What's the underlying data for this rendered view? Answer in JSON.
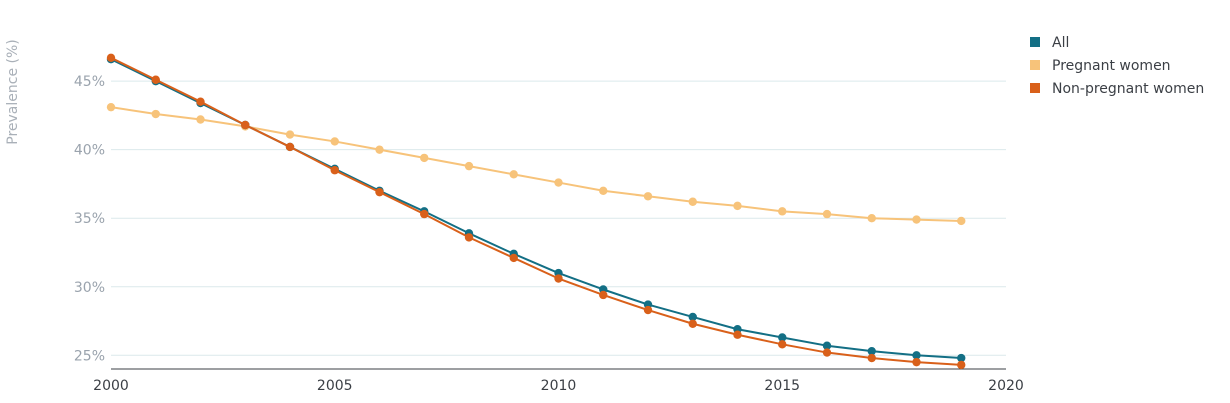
{
  "chart_data": {
    "type": "line",
    "title": "",
    "xlabel": "",
    "ylabel": "Prevalence (%)",
    "x": [
      2000,
      2001,
      2002,
      2003,
      2004,
      2005,
      2006,
      2007,
      2008,
      2009,
      2010,
      2011,
      2012,
      2013,
      2014,
      2015,
      2016,
      2017,
      2018,
      2019
    ],
    "xlim": [
      2000,
      2020
    ],
    "ylim": [
      24,
      48
    ],
    "x_ticks": [
      2000,
      2005,
      2010,
      2015,
      2020
    ],
    "y_ticks": [
      25,
      30,
      35,
      40,
      45
    ],
    "y_tick_labels": [
      "25%",
      "30%",
      "35%",
      "40%",
      "45%"
    ],
    "grid": "horizontal",
    "legend_position": "top-right",
    "series": [
      {
        "name": "All",
        "color": "#136f85",
        "values": [
          46.6,
          45.0,
          43.4,
          41.8,
          40.2,
          38.6,
          37.0,
          35.5,
          33.9,
          32.4,
          31.0,
          29.8,
          28.7,
          27.8,
          26.9,
          26.3,
          25.7,
          25.3,
          25.0,
          24.8
        ]
      },
      {
        "name": "Pregnant women",
        "color": "#f7c37a",
        "values": [
          43.1,
          42.6,
          42.2,
          41.7,
          41.1,
          40.6,
          40.0,
          39.4,
          38.8,
          38.2,
          37.6,
          37.0,
          36.6,
          36.2,
          35.9,
          35.5,
          35.3,
          35.0,
          34.9,
          34.8
        ]
      },
      {
        "name": "Non-pregnant women",
        "color": "#d9601a",
        "values": [
          46.7,
          45.1,
          43.5,
          41.8,
          40.2,
          38.5,
          36.9,
          35.3,
          33.6,
          32.1,
          30.6,
          29.4,
          28.3,
          27.3,
          26.5,
          25.8,
          25.2,
          24.8,
          24.5,
          24.3
        ]
      }
    ]
  }
}
